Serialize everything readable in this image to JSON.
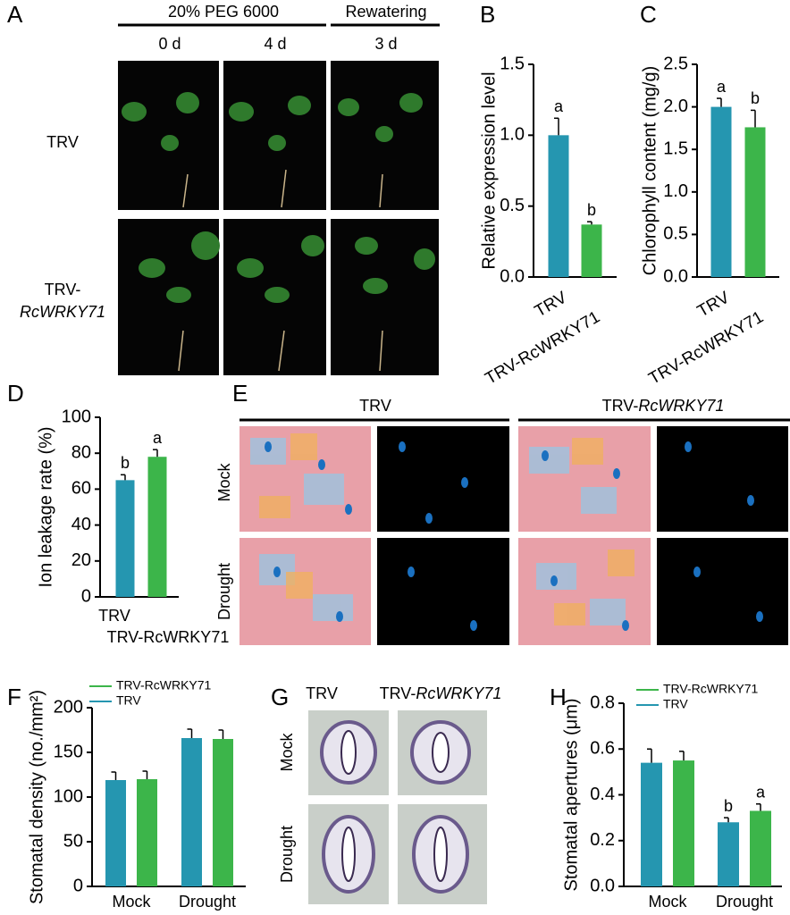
{
  "panel_labels": [
    "A",
    "B",
    "C",
    "D",
    "E",
    "F",
    "G",
    "H"
  ],
  "panel_a": {
    "headers": [
      "20% PEG 6000",
      "Rewatering"
    ],
    "columns": [
      "0 d",
      "4 d",
      "3 d"
    ],
    "rows": [
      [
        "TRV"
      ],
      [
        "TRV-",
        "RcWRKY71"
      ]
    ]
  },
  "panel_e": {
    "columns": [
      [
        "TRV"
      ],
      [
        "TRV-",
        "RcWRKY71"
      ]
    ],
    "rows": [
      "Mock",
      "Drought"
    ]
  },
  "panel_g": {
    "columns": [
      [
        "TRV"
      ],
      [
        "TRV-",
        "RcWRKY71"
      ]
    ],
    "rows": [
      "Mock",
      "Drought"
    ]
  },
  "chart_data": [
    {
      "type": "bar",
      "ylabel": "Relative expression level",
      "categories": [
        "TRV",
        "TRV-RcWRKY71"
      ],
      "values": [
        1.0,
        0.37
      ],
      "errors": [
        0.12,
        0.02
      ],
      "annotations": [
        "a",
        "b"
      ],
      "colors": [
        "#2596b0",
        "#3cb54a"
      ],
      "ylim": [
        0,
        1.5
      ],
      "yticks": [
        {
          "value": 0,
          "label": "0.0"
        },
        0.5,
        {
          "value": 1,
          "label": "1.0"
        },
        1.5
      ]
    },
    {
      "type": "bar",
      "ylabel": "Chlorophyll content (mg/g)",
      "categories": [
        "TRV",
        "TRV-RcWRKY71"
      ],
      "values": [
        2.0,
        1.76
      ],
      "errors": [
        0.1,
        0.2
      ],
      "annotations": [
        "a",
        "b"
      ],
      "colors": [
        "#2596b0",
        "#3cb54a"
      ],
      "ylim": [
        0,
        2.5
      ],
      "yticks": [
        {
          "value": 0,
          "label": "0.0"
        },
        0.5,
        {
          "value": 1,
          "label": "1.0"
        },
        1.5,
        {
          "value": 2,
          "label": "2.0"
        },
        2.5
      ]
    },
    {
      "type": "bar",
      "ylabel": "Ion leakage  rate (%)",
      "categories": [
        "TRV",
        "TRV-RcWRKY71"
      ],
      "values": [
        65,
        78
      ],
      "errors": [
        3,
        4
      ],
      "annotations": [
        "b",
        "a"
      ],
      "colors": [
        "#2596b0",
        "#3cb54a"
      ],
      "ylim": [
        0,
        100
      ],
      "yticks": [
        0,
        20,
        40,
        60,
        80,
        100
      ]
    },
    {
      "type": "grouped_bar",
      "ylabel": "Stomatal density (no./mm²)",
      "categories": [
        "Mock",
        "Drought"
      ],
      "series": [
        {
          "name": "TRV",
          "color": "#2596b0",
          "values": [
            119,
            166
          ],
          "errors": [
            9,
            10
          ]
        },
        {
          "name": "TRV-RcWRKY71",
          "color": "#3cb54a",
          "values": [
            120,
            165
          ],
          "errors": [
            9,
            10
          ]
        }
      ],
      "ylim": [
        0,
        200
      ],
      "yticks": [
        0,
        50,
        100,
        150,
        200
      ]
    },
    {
      "type": "grouped_bar",
      "ylabel": "Stomatal  apertures (μm)",
      "categories": [
        "Mock",
        "Drought"
      ],
      "series": [
        {
          "name": "TRV",
          "color": "#2596b0",
          "values": [
            0.54,
            0.28
          ],
          "errors": [
            0.06,
            0.02
          ],
          "annotations": [
            null,
            "b"
          ]
        },
        {
          "name": "TRV-RcWRKY71",
          "color": "#3cb54a",
          "values": [
            0.55,
            0.33
          ],
          "errors": [
            0.04,
            0.03
          ],
          "annotations": [
            null,
            "a"
          ]
        }
      ],
      "ylim": [
        0,
        0.8
      ],
      "yticks": [
        {
          "value": 0,
          "label": "0.0"
        },
        0.2,
        0.4,
        0.6,
        0.8
      ]
    }
  ]
}
